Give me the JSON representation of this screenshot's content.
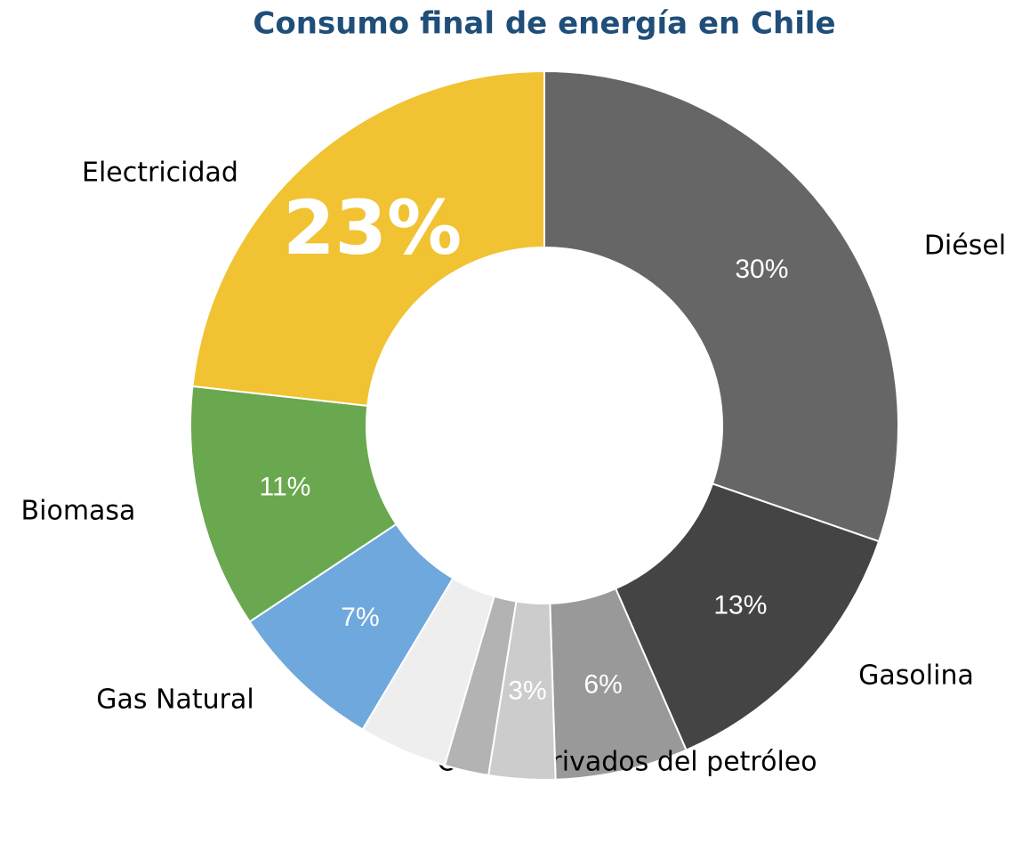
{
  "chart_data": {
    "type": "donut",
    "title": "Consumo final de energía en Chile",
    "categories": [
      "Diésel",
      "Gasolina",
      "Otros derivados del petróleo",
      null,
      null,
      null,
      "Gas Natural",
      "Biomasa",
      "Electricidad"
    ],
    "values": [
      30,
      13,
      6,
      3,
      2,
      4,
      7,
      11,
      23
    ],
    "value_labels": [
      "30%",
      "13%",
      "6%",
      "3%",
      null,
      null,
      "7%",
      "11%",
      "23%"
    ],
    "colors": [
      "#666666",
      "#444444",
      "#999999",
      "#cccccc",
      "#b3b3b3",
      "#eeeeee",
      "#6fa8dc",
      "#6aa84f",
      "#f1c232"
    ],
    "highlight": 8
  }
}
